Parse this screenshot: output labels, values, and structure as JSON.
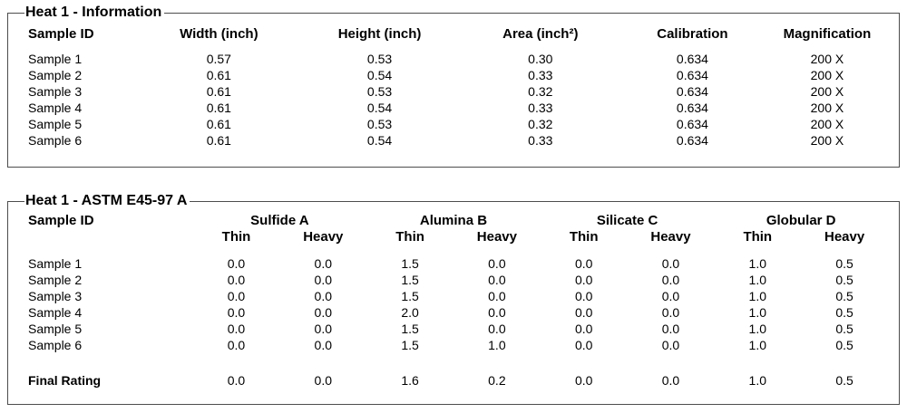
{
  "info": {
    "legend": "Heat 1 - Information",
    "columns": [
      "Sample ID",
      "Width (inch)",
      "Height (inch)",
      "Area (inch²)",
      "Calibration",
      "Magnification"
    ],
    "rows": [
      [
        "Sample 1",
        "0.57",
        "0.53",
        "0.30",
        "0.634",
        "200 X"
      ],
      [
        "Sample 2",
        "0.61",
        "0.54",
        "0.33",
        "0.634",
        "200 X"
      ],
      [
        "Sample 3",
        "0.61",
        "0.53",
        "0.32",
        "0.634",
        "200 X"
      ],
      [
        "Sample 4",
        "0.61",
        "0.54",
        "0.33",
        "0.634",
        "200 X"
      ],
      [
        "Sample 5",
        "0.61",
        "0.53",
        "0.32",
        "0.634",
        "200 X"
      ],
      [
        "Sample 6",
        "0.61",
        "0.54",
        "0.33",
        "0.634",
        "200 X"
      ]
    ]
  },
  "astm": {
    "legend": "Heat 1 - ASTM E45-97 A",
    "id_column": "Sample ID",
    "groups": [
      "Sulfide A",
      "Alumina B",
      "Silicate C",
      "Globular D"
    ],
    "sub_columns": [
      "Thin",
      "Heavy"
    ],
    "rows": [
      [
        "Sample 1",
        "0.0",
        "0.0",
        "1.5",
        "0.0",
        "0.0",
        "0.0",
        "1.0",
        "0.5"
      ],
      [
        "Sample 2",
        "0.0",
        "0.0",
        "1.5",
        "0.0",
        "0.0",
        "0.0",
        "1.0",
        "0.5"
      ],
      [
        "Sample 3",
        "0.0",
        "0.0",
        "1.5",
        "0.0",
        "0.0",
        "0.0",
        "1.0",
        "0.5"
      ],
      [
        "Sample 4",
        "0.0",
        "0.0",
        "2.0",
        "0.0",
        "0.0",
        "0.0",
        "1.0",
        "0.5"
      ],
      [
        "Sample 5",
        "0.0",
        "0.0",
        "1.5",
        "0.0",
        "0.0",
        "0.0",
        "1.0",
        "0.5"
      ],
      [
        "Sample 6",
        "0.0",
        "0.0",
        "1.5",
        "1.0",
        "0.0",
        "0.0",
        "1.0",
        "0.5"
      ]
    ],
    "final_rating": {
      "label": "Final Rating",
      "values": [
        "0.0",
        "0.0",
        "1.6",
        "0.2",
        "0.0",
        "0.0",
        "1.0",
        "0.5"
      ]
    }
  },
  "colors": {
    "border": "#4d4d4d",
    "text": "#000000",
    "background": "#ffffff"
  }
}
